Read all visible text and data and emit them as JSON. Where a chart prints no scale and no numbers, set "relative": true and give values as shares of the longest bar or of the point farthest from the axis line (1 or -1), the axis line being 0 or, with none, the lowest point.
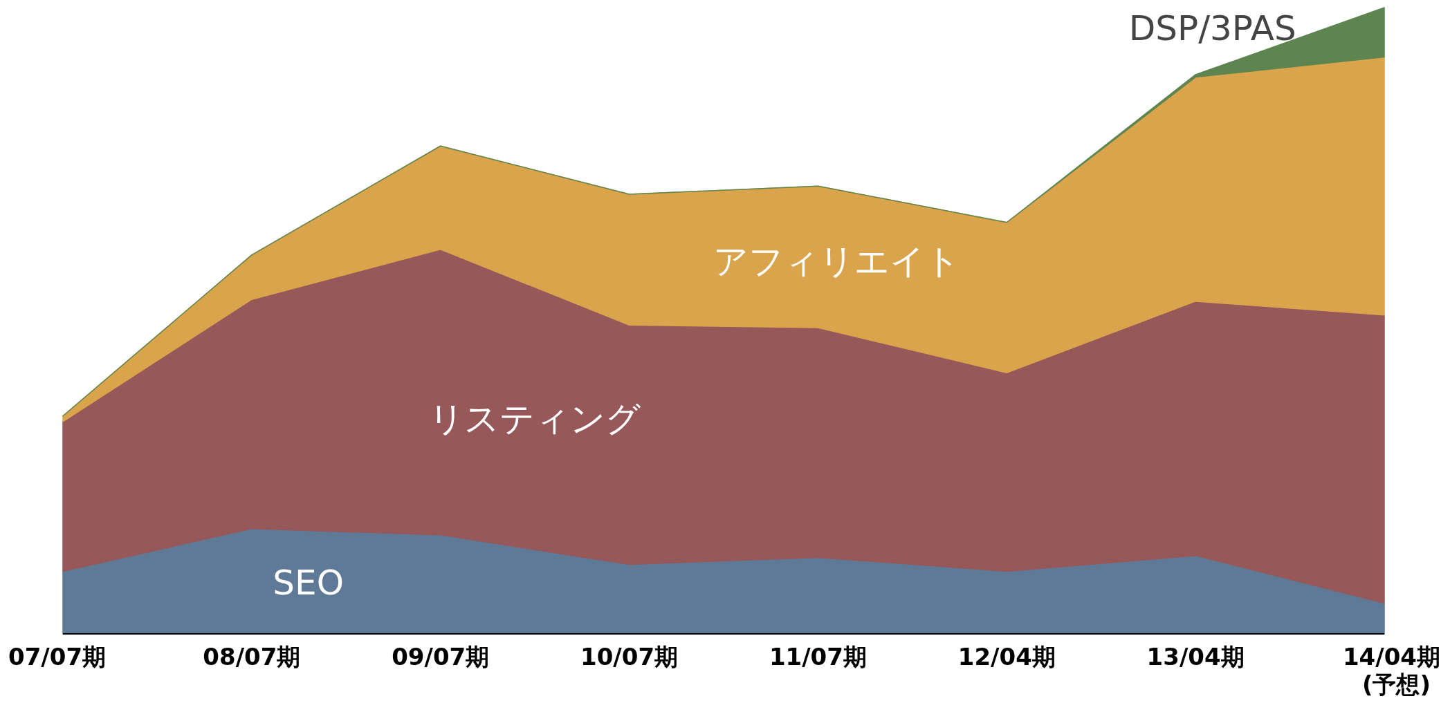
{
  "chart_data": {
    "type": "area",
    "stacked": true,
    "relative": true,
    "categories": [
      "07/07期",
      "08/07期",
      "09/07期",
      "10/07期",
      "11/07期",
      "12/04期",
      "13/04期",
      "14/04期 (予想)"
    ],
    "series": [
      {
        "name": "SEO",
        "color": "#5f7a96",
        "values": [
          0.1,
          0.168,
          0.158,
          0.111,
          0.122,
          0.1,
          0.125,
          0.049
        ]
      },
      {
        "name": "リスティング",
        "color": "#97585a",
        "values": [
          0.239,
          0.366,
          0.456,
          0.382,
          0.367,
          0.317,
          0.406,
          0.46
        ]
      },
      {
        "name": "アフィリエイト",
        "color": "#d9a44c",
        "values": [
          0.009,
          0.071,
          0.165,
          0.209,
          0.226,
          0.24,
          0.358,
          0.412
        ]
      },
      {
        "name": "DSP/3PAS",
        "color": "#5e8550",
        "values": [
          0,
          0,
          0,
          0,
          0,
          0,
          0.004,
          0.079
        ]
      }
    ]
  }
}
